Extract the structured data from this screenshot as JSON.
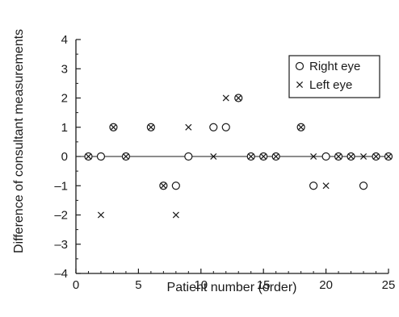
{
  "chart_data": {
    "type": "scatter",
    "title": "",
    "xlabel": "Patient number (order)",
    "ylabel": "Difference of consultant measurements",
    "xlim": [
      0,
      25
    ],
    "ylim": [
      -4,
      4
    ],
    "xticks": [
      0,
      5,
      10,
      15,
      20,
      25
    ],
    "yticks": [
      -4,
      -3,
      -2,
      -1,
      0,
      1,
      2,
      3,
      4
    ],
    "grid": false,
    "legend_position": "top-right",
    "reference_line": 0,
    "series": [
      {
        "name": "Right eye",
        "marker": "circle",
        "points": [
          [
            1,
            0
          ],
          [
            2,
            0
          ],
          [
            3,
            1
          ],
          [
            4,
            0
          ],
          [
            6,
            1
          ],
          [
            7,
            -1
          ],
          [
            8,
            -1
          ],
          [
            9,
            0
          ],
          [
            11,
            1
          ],
          [
            12,
            1
          ],
          [
            13,
            2
          ],
          [
            14,
            0
          ],
          [
            15,
            0
          ],
          [
            16,
            0
          ],
          [
            18,
            1
          ],
          [
            19,
            -1
          ],
          [
            20,
            0
          ],
          [
            21,
            0
          ],
          [
            22,
            0
          ],
          [
            23,
            -1
          ],
          [
            24,
            0
          ],
          [
            25,
            0
          ]
        ]
      },
      {
        "name": "Left eye",
        "marker": "cross",
        "points": [
          [
            1,
            0
          ],
          [
            2,
            -2
          ],
          [
            3,
            1
          ],
          [
            4,
            0
          ],
          [
            6,
            1
          ],
          [
            7,
            -1
          ],
          [
            8,
            -2
          ],
          [
            9,
            1
          ],
          [
            11,
            0
          ],
          [
            12,
            2
          ],
          [
            13,
            2
          ],
          [
            14,
            0
          ],
          [
            15,
            0
          ],
          [
            16,
            0
          ],
          [
            18,
            1
          ],
          [
            19,
            0
          ],
          [
            20,
            -1
          ],
          [
            21,
            0
          ],
          [
            22,
            0
          ],
          [
            23,
            0
          ],
          [
            24,
            0
          ],
          [
            25,
            0
          ]
        ]
      }
    ]
  }
}
